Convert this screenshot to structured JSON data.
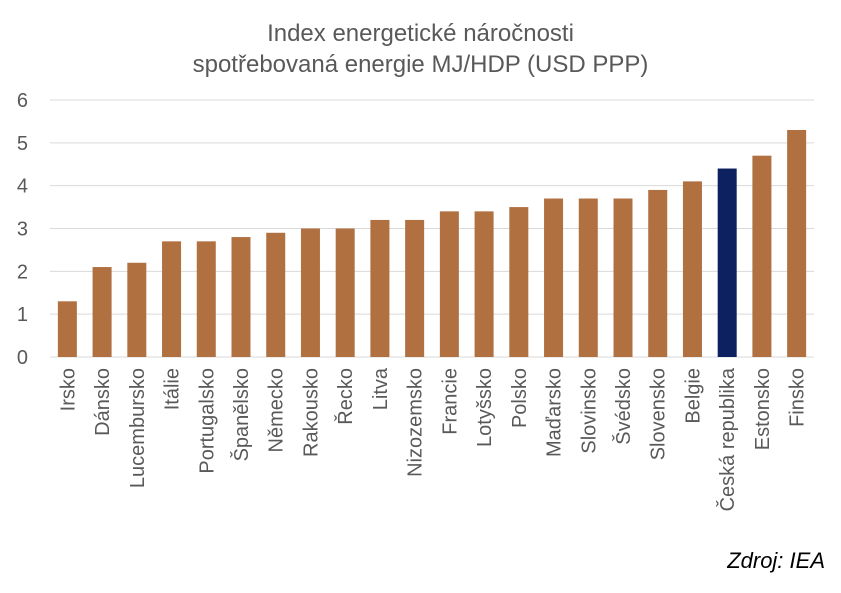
{
  "chart_data": {
    "type": "bar",
    "title": "Index energetické náročnosti",
    "subtitle": "spotřebovaná energie MJ/HDP (USD PPP)",
    "categories": [
      "Irsko",
      "Dánsko",
      "Lucembursko",
      "Itálie",
      "Portugalsko",
      "Španělsko",
      "Německo",
      "Rakousko",
      "Řecko",
      "Litva",
      "Nizozemsko",
      "Francie",
      "Lotyšsko",
      "Polsko",
      "Maďarsko",
      "Slovinsko",
      "Švédsko",
      "Slovensko",
      "Belgie",
      "Česká republika",
      "Estonsko",
      "Finsko"
    ],
    "values": [
      1.3,
      2.1,
      2.2,
      2.7,
      2.7,
      2.8,
      2.9,
      3.0,
      3.0,
      3.2,
      3.2,
      3.4,
      3.4,
      3.5,
      3.7,
      3.7,
      3.7,
      3.9,
      4.1,
      4.4,
      4.7,
      5.3
    ],
    "ylim": [
      0,
      6
    ],
    "yticks": [
      "0",
      "1",
      "2",
      "3",
      "4",
      "5",
      "6"
    ],
    "grid": true,
    "bar_color": "#B07040",
    "highlight_color": "#0D2060",
    "highlight_category": "Česká republika"
  },
  "source": "Zdroj: IEA"
}
